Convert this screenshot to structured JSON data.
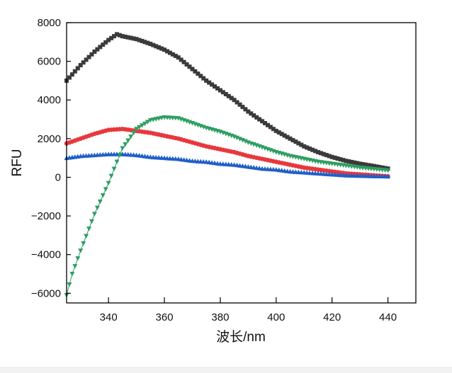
{
  "chart_data": {
    "type": "line",
    "title": "",
    "xlabel": "波长/nm",
    "ylabel": "RFU",
    "xlim": [
      325,
      450
    ],
    "ylim": [
      -6500,
      8000
    ],
    "xticks": [
      340,
      360,
      380,
      400,
      420,
      440
    ],
    "yticks": [
      -6000,
      -4000,
      -2000,
      0,
      2000,
      4000,
      6000,
      8000
    ],
    "xtick_labels": [
      "340",
      "360",
      "380",
      "400",
      "420",
      "440"
    ],
    "ytick_labels": [
      "−6000",
      "−4000",
      "−2000",
      "0",
      "2000",
      "4000",
      "6000",
      "8000"
    ],
    "grid": false,
    "legend": "none",
    "series": [
      {
        "name": "black",
        "color": "#3a3a3a",
        "marker": "square",
        "x": [
          325,
          330,
          335,
          340,
          343,
          345,
          350,
          355,
          360,
          365,
          370,
          375,
          380,
          385,
          390,
          395,
          400,
          405,
          410,
          415,
          420,
          425,
          430,
          435,
          440
        ],
        "y": [
          5000,
          5800,
          6500,
          7100,
          7400,
          7300,
          7150,
          6900,
          6600,
          6200,
          5600,
          5000,
          4500,
          4000,
          3400,
          2900,
          2400,
          2000,
          1600,
          1300,
          1050,
          850,
          700,
          580,
          450
        ]
      },
      {
        "name": "red",
        "color": "#e8383d",
        "marker": "circle",
        "x": [
          325,
          330,
          335,
          340,
          345,
          350,
          355,
          360,
          365,
          370,
          375,
          380,
          385,
          390,
          395,
          400,
          405,
          410,
          415,
          420,
          425,
          430,
          435,
          440
        ],
        "y": [
          1750,
          2000,
          2250,
          2450,
          2500,
          2400,
          2300,
          2150,
          2000,
          1800,
          1600,
          1450,
          1300,
          1100,
          950,
          800,
          650,
          500,
          400,
          300,
          200,
          150,
          100,
          50
        ]
      },
      {
        "name": "blue",
        "color": "#1f5fc8",
        "marker": "triangle-up",
        "x": [
          325,
          330,
          335,
          340,
          345,
          350,
          355,
          360,
          365,
          370,
          375,
          380,
          385,
          390,
          395,
          400,
          405,
          410,
          415,
          420,
          425,
          430,
          435,
          440
        ],
        "y": [
          1000,
          1100,
          1150,
          1200,
          1200,
          1150,
          1050,
          1000,
          950,
          850,
          800,
          700,
          650,
          550,
          450,
          400,
          300,
          250,
          200,
          150,
          100,
          80,
          60,
          50
        ]
      },
      {
        "name": "green",
        "color": "#2e9e62",
        "marker": "triangle-down",
        "x": [
          325,
          327,
          330,
          335,
          340,
          343,
          345,
          350,
          355,
          360,
          365,
          370,
          375,
          380,
          385,
          390,
          395,
          400,
          405,
          410,
          415,
          420,
          425,
          430,
          435,
          440
        ],
        "y": [
          -6100,
          -5000,
          -3800,
          -1900,
          -300,
          800,
          1500,
          2500,
          2950,
          3100,
          3050,
          2800,
          2550,
          2350,
          2100,
          1800,
          1550,
          1300,
          1100,
          950,
          800,
          700,
          600,
          500,
          420,
          350
        ]
      }
    ]
  }
}
